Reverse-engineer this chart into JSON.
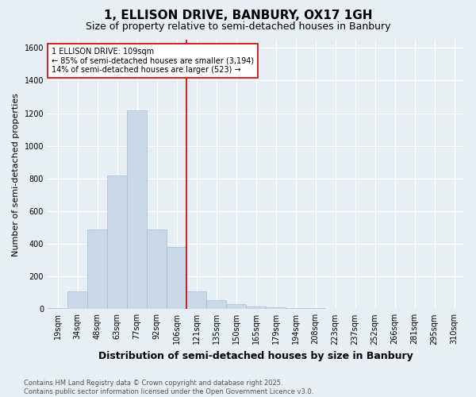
{
  "title": "1, ELLISON DRIVE, BANBURY, OX17 1GH",
  "subtitle": "Size of property relative to semi-detached houses in Banbury",
  "xlabel": "Distribution of semi-detached houses by size in Banbury",
  "ylabel": "Number of semi-detached properties",
  "footer_line1": "Contains HM Land Registry data © Crown copyright and database right 2025.",
  "footer_line2": "Contains public sector information licensed under the Open Government Licence v3.0.",
  "categories": [
    "19sqm",
    "34sqm",
    "48sqm",
    "63sqm",
    "77sqm",
    "92sqm",
    "106sqm",
    "121sqm",
    "135sqm",
    "150sqm",
    "165sqm",
    "179sqm",
    "194sqm",
    "208sqm",
    "223sqm",
    "237sqm",
    "252sqm",
    "266sqm",
    "281sqm",
    "295sqm",
    "310sqm"
  ],
  "values": [
    5,
    110,
    490,
    820,
    1215,
    490,
    380,
    110,
    55,
    30,
    15,
    10,
    5,
    5,
    2,
    0,
    0,
    0,
    0,
    0,
    0
  ],
  "bar_color": "#c9d9ea",
  "bar_edge_color": "#a8c0d8",
  "vline_index": 6,
  "vline_color": "#cc0000",
  "annotation_text": "1 ELLISON DRIVE: 109sqm\n← 85% of semi-detached houses are smaller (3,194)\n14% of semi-detached houses are larger (523) →",
  "annotation_box_facecolor": "#ffffff",
  "annotation_box_edgecolor": "#cc0000",
  "ylim": [
    0,
    1650
  ],
  "yticks": [
    0,
    200,
    400,
    600,
    800,
    1000,
    1200,
    1400,
    1600
  ],
  "bg_color": "#e8eef5",
  "plot_bg_color": "#e8eef5",
  "grid_color": "#ffffff",
  "title_fontsize": 11,
  "subtitle_fontsize": 9,
  "xlabel_fontsize": 9,
  "ylabel_fontsize": 8,
  "tick_fontsize": 7,
  "annotation_fontsize": 7,
  "footer_fontsize": 6
}
